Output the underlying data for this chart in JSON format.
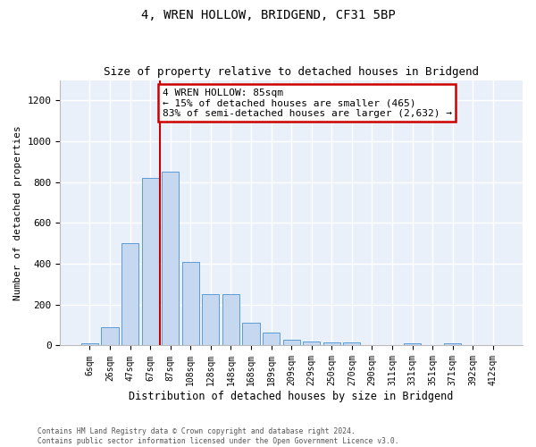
{
  "title1": "4, WREN HOLLOW, BRIDGEND, CF31 5BP",
  "title2": "Size of property relative to detached houses in Bridgend",
  "xlabel": "Distribution of detached houses by size in Bridgend",
  "ylabel": "Number of detached properties",
  "bar_labels": [
    "6sqm",
    "26sqm",
    "47sqm",
    "67sqm",
    "87sqm",
    "108sqm",
    "128sqm",
    "148sqm",
    "168sqm",
    "189sqm",
    "209sqm",
    "229sqm",
    "250sqm",
    "270sqm",
    "290sqm",
    "311sqm",
    "331sqm",
    "351sqm",
    "371sqm",
    "392sqm",
    "412sqm"
  ],
  "bar_values": [
    10,
    90,
    500,
    820,
    850,
    410,
    250,
    250,
    110,
    65,
    30,
    20,
    15,
    15,
    0,
    0,
    10,
    0,
    10,
    0,
    0
  ],
  "bar_color": "#c5d8f0",
  "bar_edge_color": "#5b9bd5",
  "bg_color": "#eaf0fa",
  "grid_color": "#ffffff",
  "vline_pos": 3.5,
  "vline_color": "#cc0000",
  "annotation_line1": "4 WREN HOLLOW: 85sqm",
  "annotation_line2": "← 15% of detached houses are smaller (465)",
  "annotation_line3": "83% of semi-detached houses are larger (2,632) →",
  "annotation_box_color": "#ffffff",
  "annotation_box_edge": "#cc0000",
  "ylim": [
    0,
    1300
  ],
  "yticks": [
    0,
    200,
    400,
    600,
    800,
    1000,
    1200
  ],
  "footer1": "Contains HM Land Registry data © Crown copyright and database right 2024.",
  "footer2": "Contains public sector information licensed under the Open Government Licence v3.0."
}
